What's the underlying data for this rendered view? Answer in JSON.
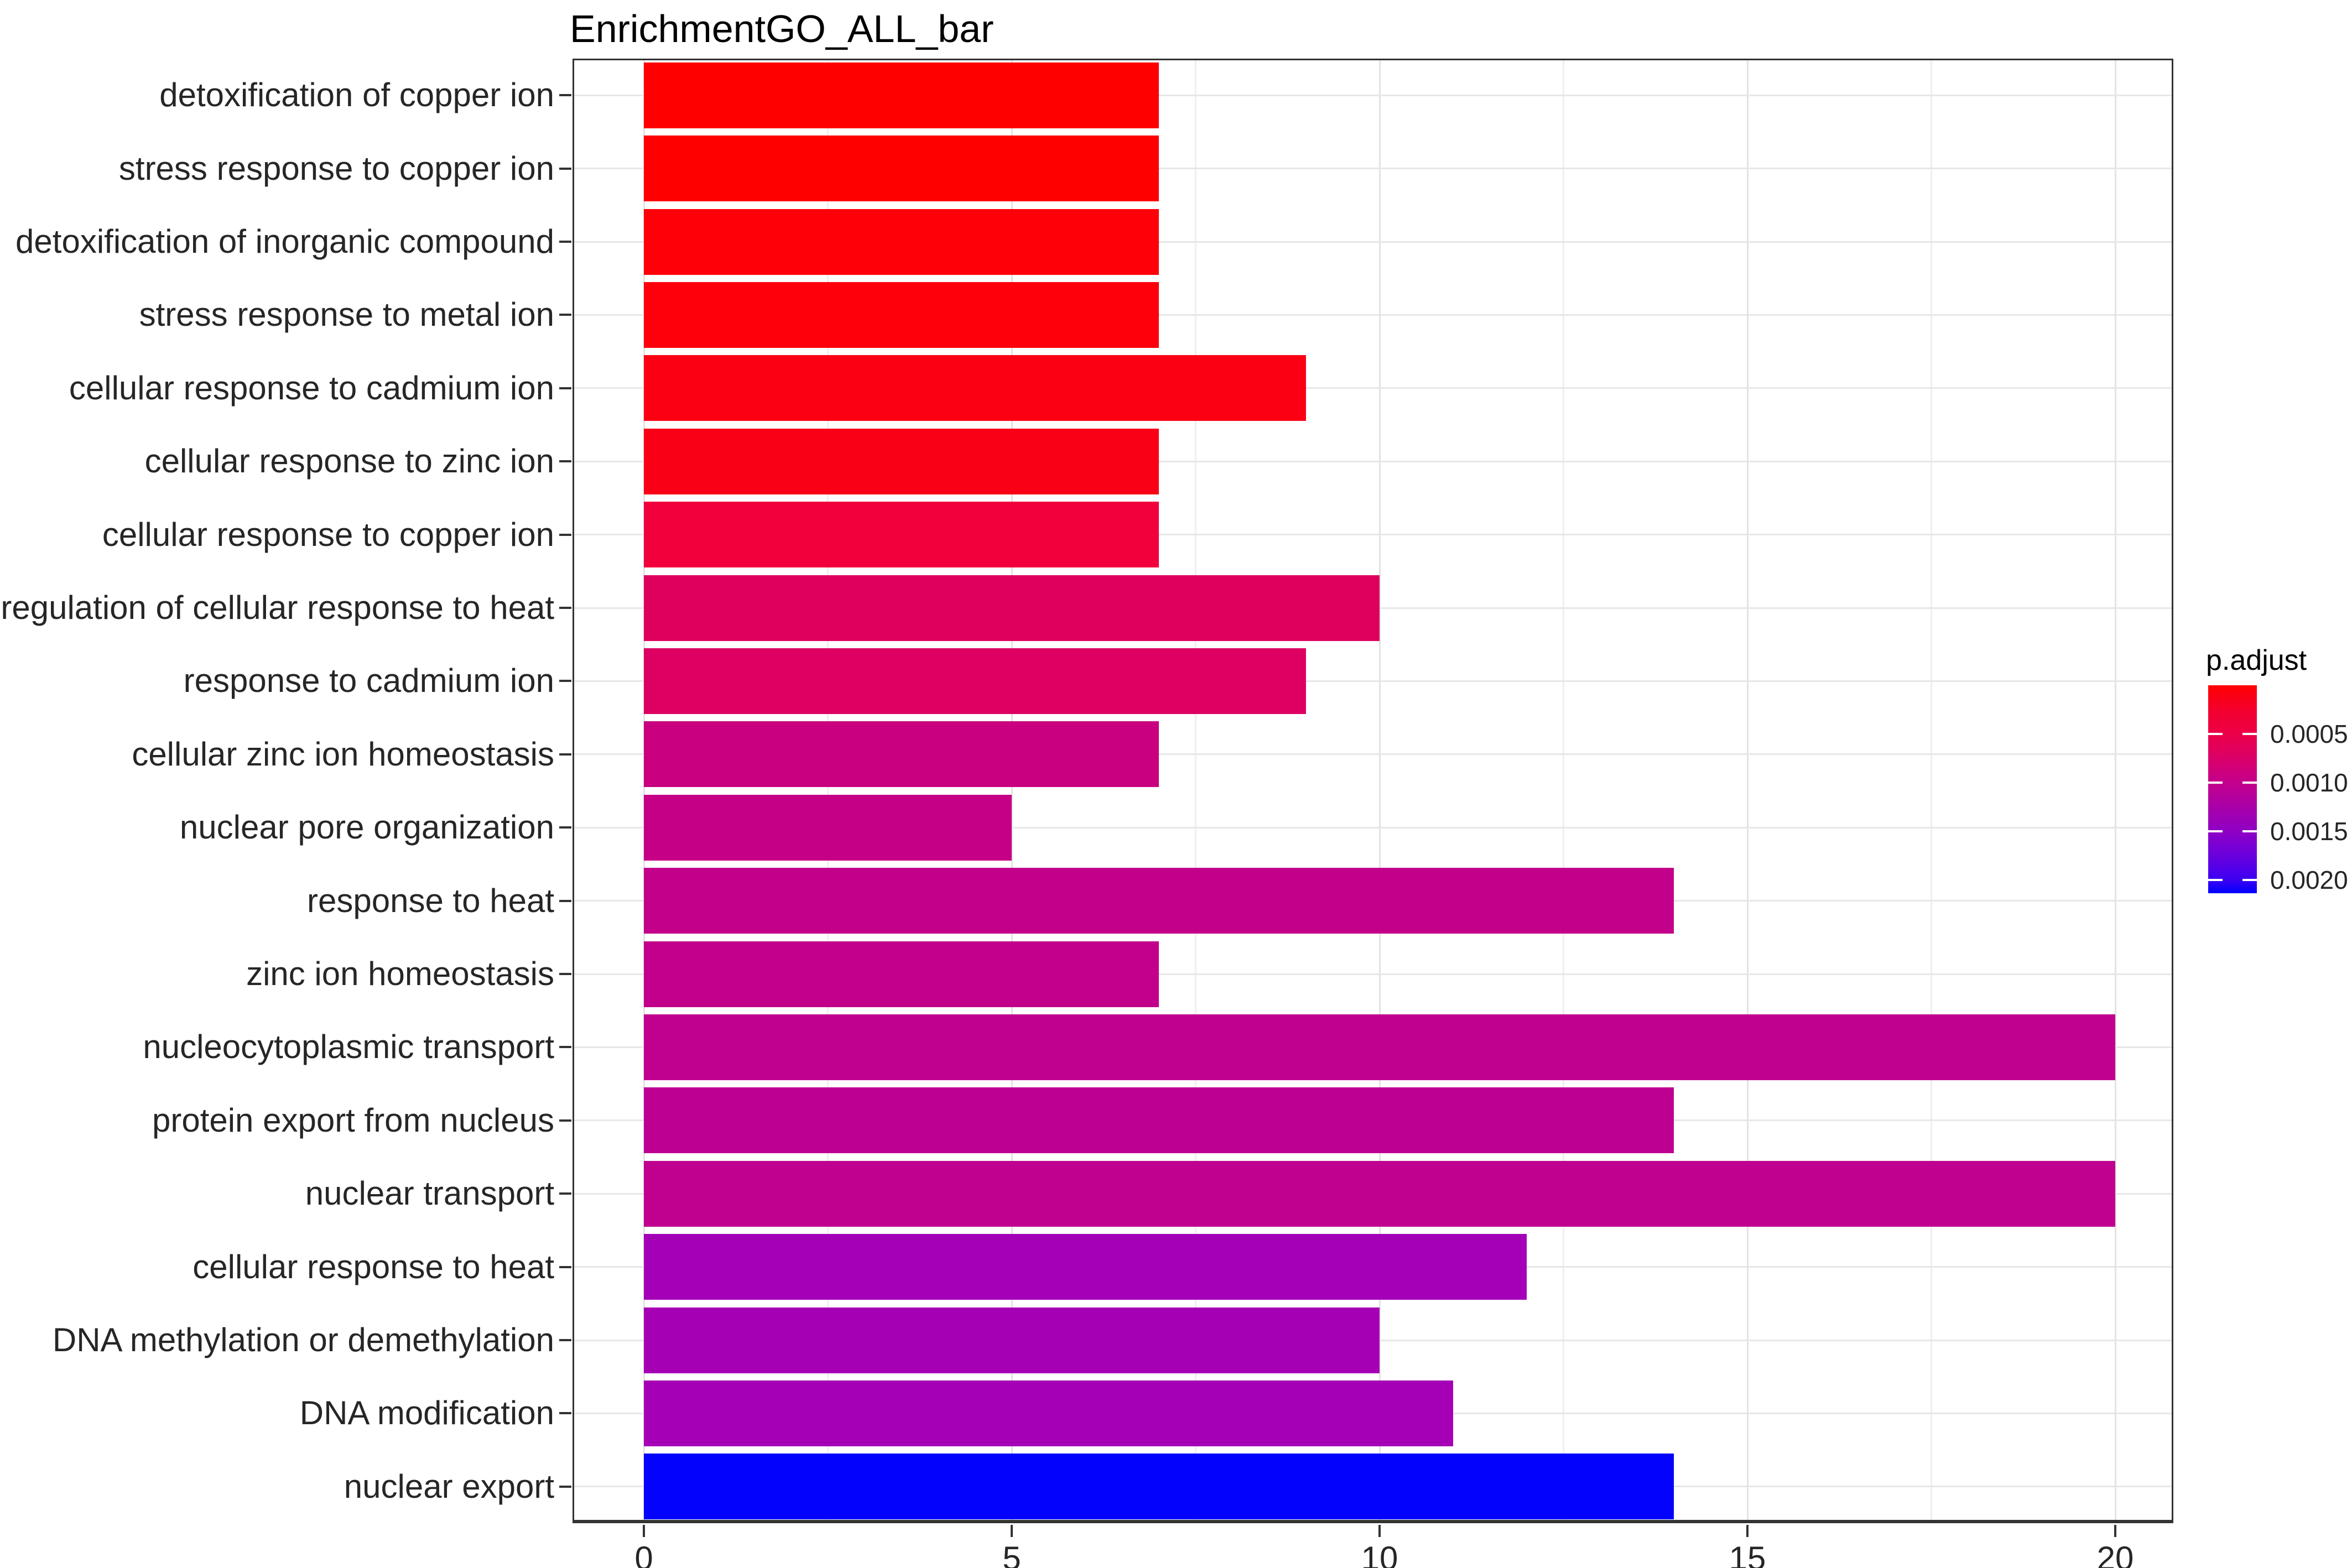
{
  "title": "EnrichmentGO_ALL_bar",
  "chart_data": {
    "type": "bar",
    "orientation": "horizontal",
    "title": "EnrichmentGO_ALL_bar",
    "xlabel": "",
    "ylabel": "",
    "xlim": [
      0,
      20
    ],
    "x_ticks": [
      "0",
      "5",
      "10",
      "15",
      "20"
    ],
    "x_tick_values": [
      0,
      5,
      10,
      15,
      20
    ],
    "x_minor_gridlines": [
      2.5,
      7.5,
      12.5,
      17.5
    ],
    "grid": "vertical major+minor, horizontal at category centers",
    "categories": [
      "detoxification of copper ion",
      "stress response to copper ion",
      "detoxification of inorganic compound",
      "stress response to metal ion",
      "cellular response to cadmium ion",
      "cellular response to zinc ion",
      "cellular response to copper ion",
      "regulation of cellular response to heat",
      "response to cadmium ion",
      "cellular zinc ion homeostasis",
      "nuclear pore organization",
      "response to heat",
      "zinc ion homeostasis",
      "nucleocytoplasmic transport",
      "protein export from nucleus",
      "nuclear transport",
      "cellular response to heat",
      "DNA methylation or demethylation",
      "DNA modification",
      "nuclear export"
    ],
    "values": [
      7,
      7,
      7,
      7,
      9,
      7,
      7,
      10,
      9,
      7,
      5,
      14,
      7,
      20,
      14,
      20,
      12,
      10,
      11,
      14
    ],
    "bar_colors": [
      "#FF0000",
      "#FF0000",
      "#FE0007",
      "#FD000C",
      "#FB0013",
      "#FA0016",
      "#F1003C",
      "#DE005D",
      "#DD0062",
      "#C9007F",
      "#C50087",
      "#C3008A",
      "#C2008C",
      "#C0008F",
      "#BE0092",
      "#C0008F",
      "#A300B8",
      "#A600B5",
      "#A500B6",
      "#0202FD"
    ],
    "legend": {
      "title": "p.adjust",
      "position": "right",
      "tick_labels": [
        "0.0005",
        "0.0010",
        "0.0015",
        "0.0020"
      ],
      "tick_positions_pct": [
        23.4,
        46.8,
        70.2,
        93.5
      ],
      "gradient_top_color": "#FF0000",
      "gradient_bottom_color": "#0000FF",
      "gradient_stops": [
        {
          "color": "#FF0000",
          "pos": 0
        },
        {
          "color": "#F3002E",
          "pos": 12
        },
        {
          "color": "#EC0048",
          "pos": 23.4
        },
        {
          "color": "#DB0069",
          "pos": 35
        },
        {
          "color": "#C4008C",
          "pos": 46.8
        },
        {
          "color": "#AA00A7",
          "pos": 58
        },
        {
          "color": "#8F00C4",
          "pos": 70.2
        },
        {
          "color": "#6A00DD",
          "pos": 82
        },
        {
          "color": "#3C00F2",
          "pos": 93.5
        },
        {
          "color": "#0000FF",
          "pos": 100
        }
      ]
    }
  }
}
